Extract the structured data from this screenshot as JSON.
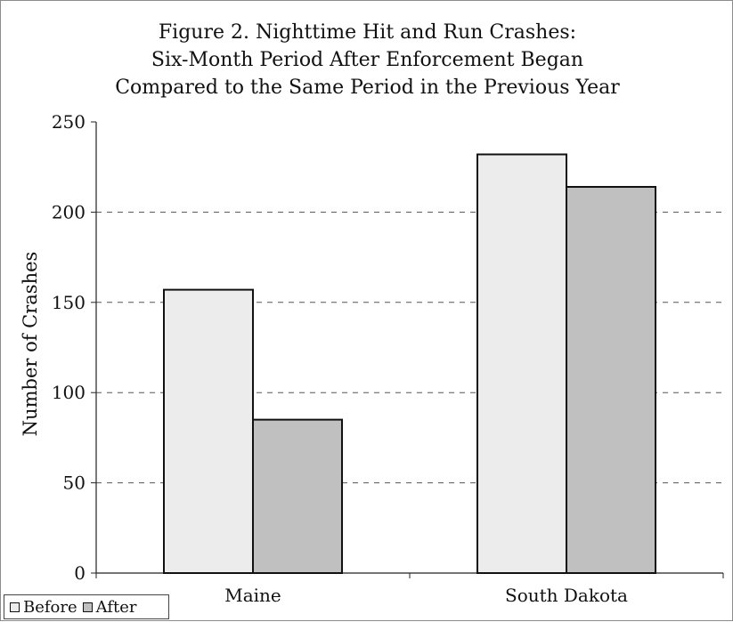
{
  "chart_data": {
    "type": "bar",
    "title_lines": [
      "Figure 2. Nighttime Hit and Run Crashes:",
      "Six-Month Period After Enforcement Began",
      "Compared to the Same Period in the  Previous Year"
    ],
    "xlabel": "",
    "ylabel": "Number of Crashes",
    "categories": [
      "Maine",
      "South Dakota"
    ],
    "series": [
      {
        "name": "Before",
        "values": [
          157,
          232
        ],
        "color": "#ececec"
      },
      {
        "name": "After",
        "values": [
          85,
          214
        ],
        "color": "#c0c0c0"
      }
    ],
    "ylim": [
      0,
      250
    ],
    "yticks": [
      0,
      50,
      100,
      150,
      200,
      250
    ],
    "grid": "horizontal dashed",
    "legend_position": "bottom-left"
  }
}
